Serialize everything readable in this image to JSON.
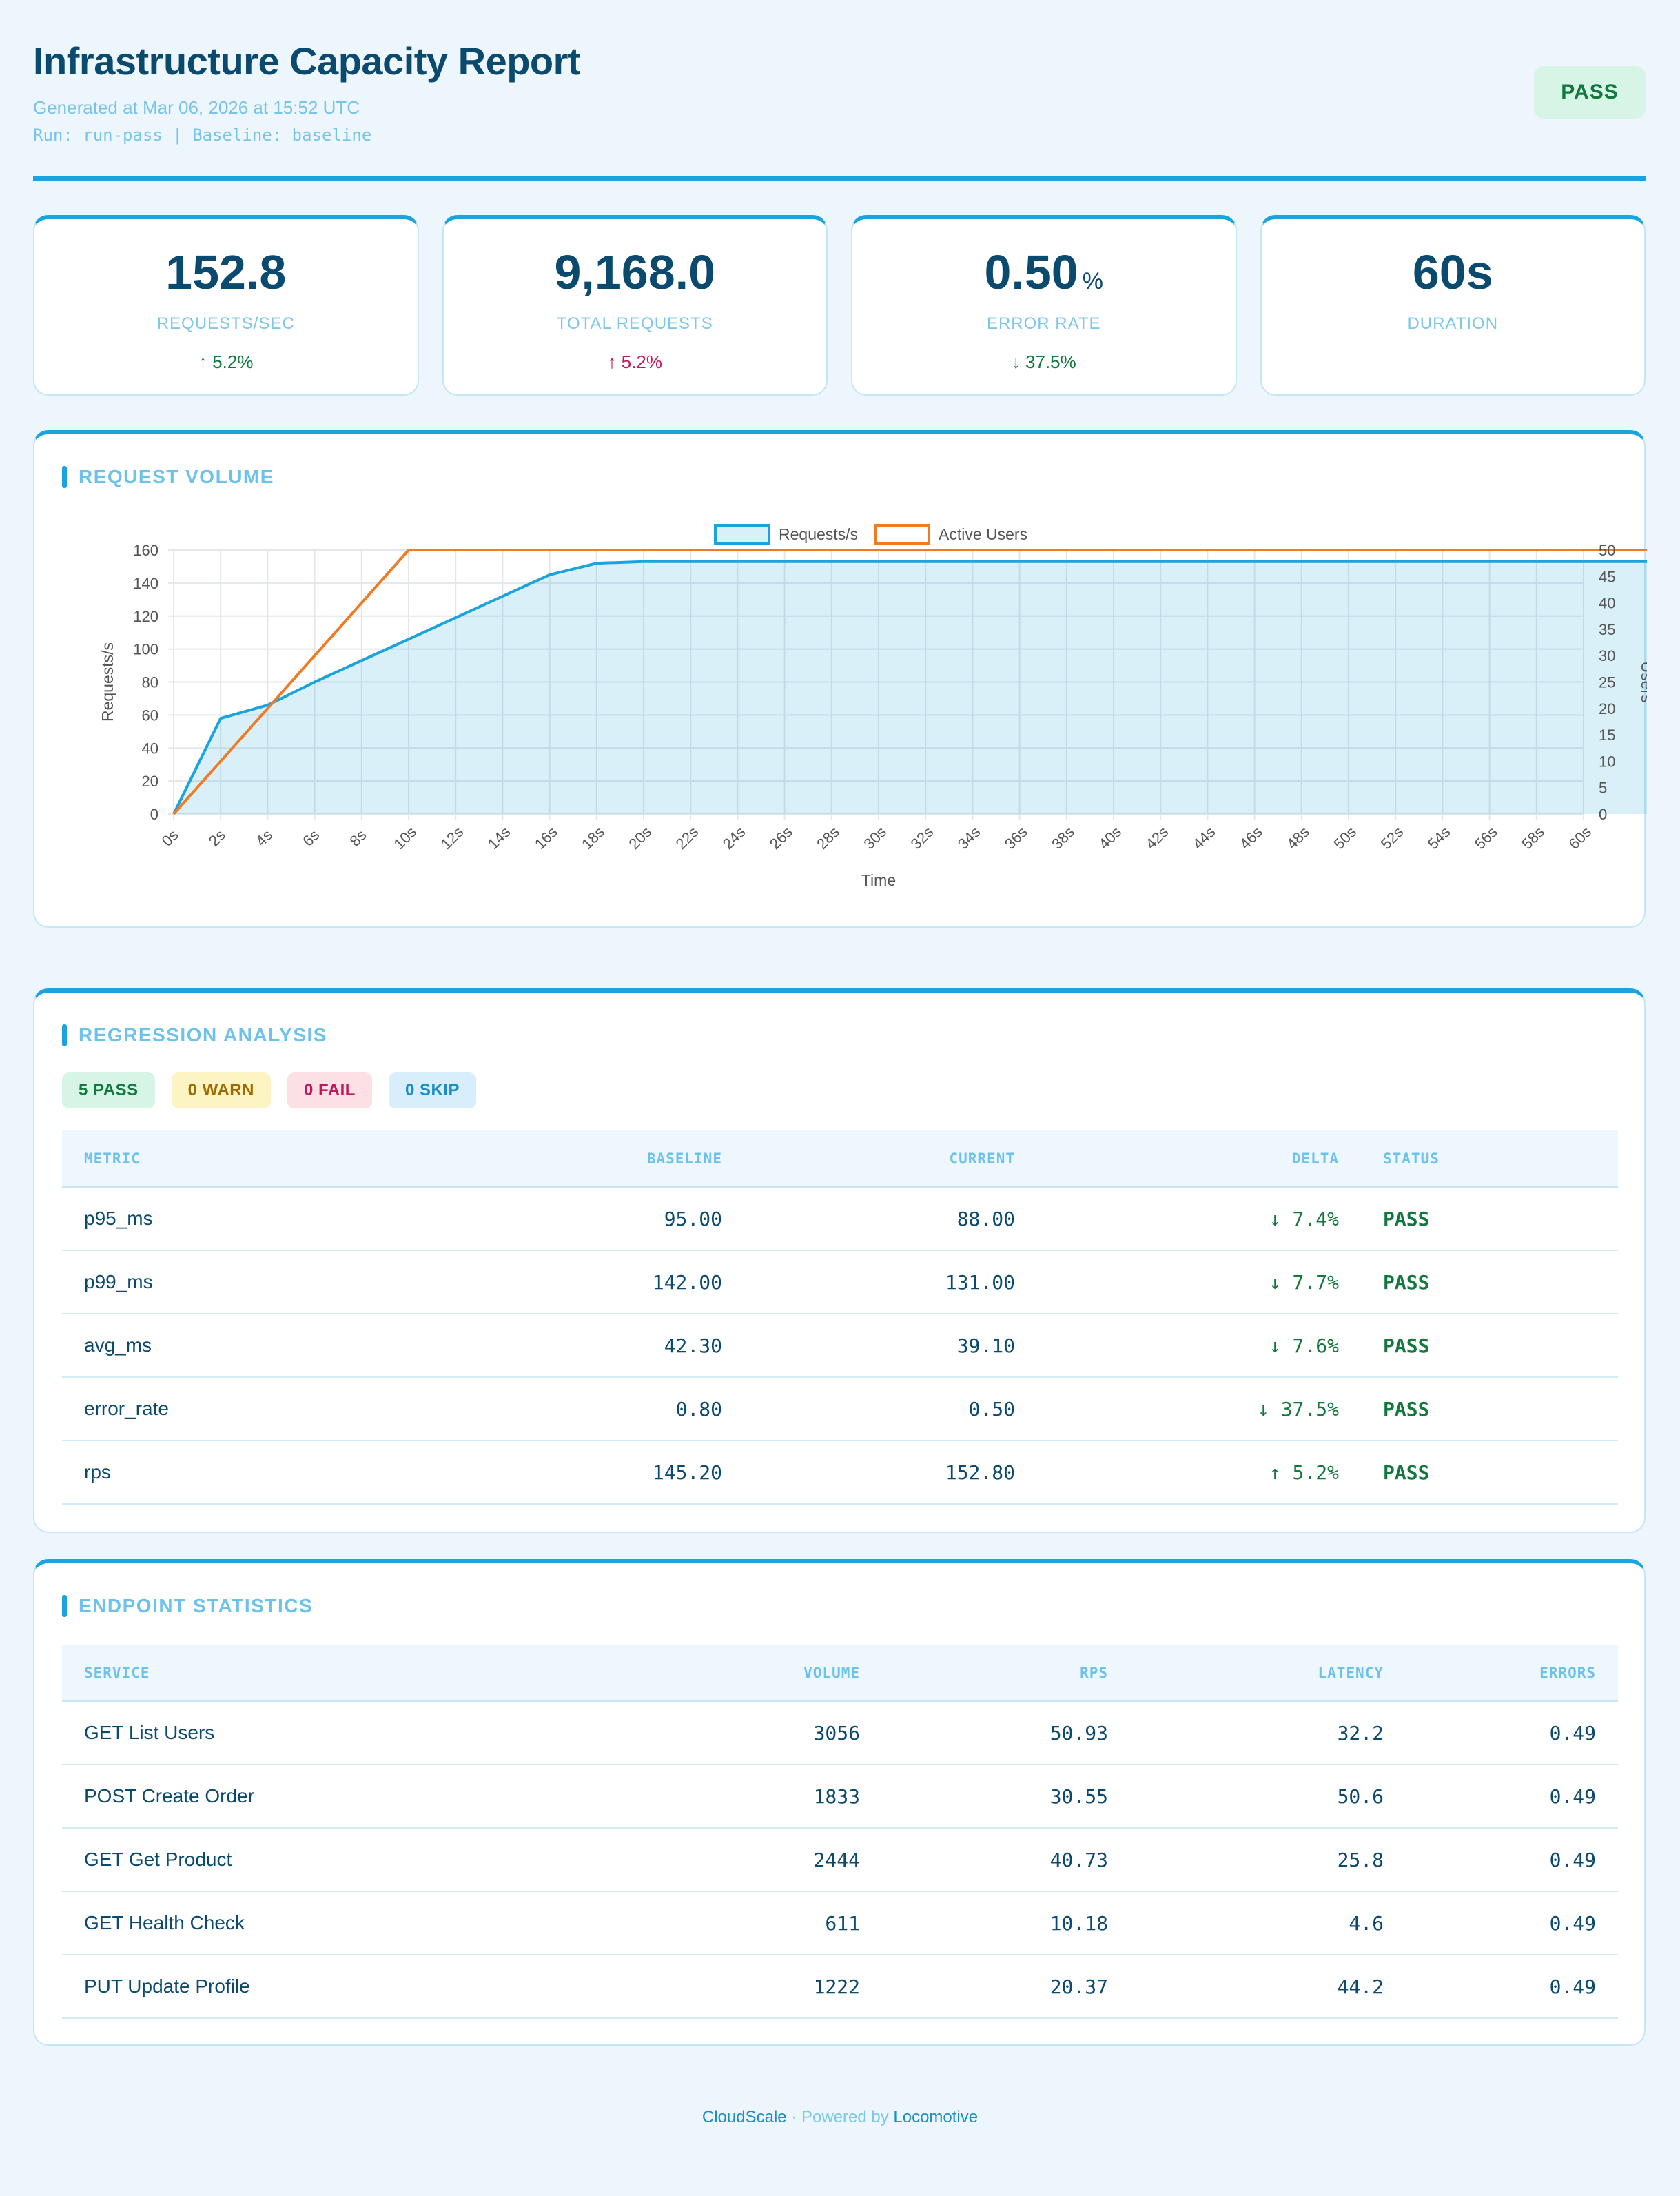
{
  "header": {
    "title": "Infrastructure Capacity Report",
    "generated": "Generated at Mar 06, 2026 at 15:52 UTC",
    "run_line": "Run: run-pass | Baseline: baseline",
    "status": "PASS"
  },
  "kpis": [
    {
      "value": "152.8",
      "unit": "",
      "label": "REQUESTS/SEC",
      "delta": "↑ 5.2%",
      "tone": "good"
    },
    {
      "value": "9,168.0",
      "unit": "",
      "label": "TOTAL REQUESTS",
      "delta": "↑ 5.2%",
      "tone": "bad"
    },
    {
      "value": "0.50",
      "unit": "%",
      "label": "ERROR RATE",
      "delta": "↓ 37.5%",
      "tone": "good"
    },
    {
      "value": "60s",
      "unit": "",
      "label": "DURATION",
      "delta": "",
      "tone": "good"
    }
  ],
  "volume": {
    "title": "REQUEST VOLUME"
  },
  "chart_data": {
    "type": "line",
    "title": "",
    "xlabel": "Time",
    "ylabel": "Requests/s",
    "y2label": "Users",
    "ylim": [
      0,
      160
    ],
    "y2lim": [
      0,
      50
    ],
    "yticks": [
      0,
      20,
      40,
      60,
      80,
      100,
      120,
      140,
      160
    ],
    "y2ticks": [
      0,
      5,
      10,
      15,
      20,
      25,
      30,
      35,
      40,
      45,
      50
    ],
    "x": [
      "0s",
      "2s",
      "4s",
      "6s",
      "8s",
      "10s",
      "12s",
      "14s",
      "16s",
      "18s",
      "20s",
      "22s",
      "24s",
      "26s",
      "28s",
      "30s",
      "32s",
      "34s",
      "36s",
      "38s",
      "40s",
      "42s",
      "44s",
      "46s",
      "48s",
      "50s",
      "52s",
      "54s",
      "56s",
      "58s",
      "60s"
    ],
    "grid": true,
    "legend": "top-center",
    "series": [
      {
        "name": "Requests/s",
        "axis": "left",
        "fill": true,
        "color": "#1aa3dc",
        "points": [
          [
            0,
            0
          ],
          [
            1,
            58
          ],
          [
            2,
            66
          ],
          [
            3,
            80
          ],
          [
            4,
            93
          ],
          [
            5,
            106
          ],
          [
            6,
            119
          ],
          [
            7,
            132
          ],
          [
            8,
            145
          ],
          [
            9,
            152
          ],
          [
            10,
            153
          ],
          [
            60,
            153
          ]
        ]
      },
      {
        "name": "Active Users",
        "axis": "right",
        "fill": false,
        "color": "#f07b24",
        "points": [
          [
            0,
            0
          ],
          [
            1,
            10
          ],
          [
            2,
            20
          ],
          [
            3,
            30
          ],
          [
            4,
            40
          ],
          [
            5,
            50
          ],
          [
            60,
            50
          ]
        ]
      }
    ]
  },
  "regression": {
    "title": "REGRESSION ANALYSIS",
    "counts": {
      "pass": "5 PASS",
      "warn": "0 WARN",
      "fail": "0 FAIL",
      "skip": "0 SKIP"
    },
    "headers": [
      "METRIC",
      "BASELINE",
      "CURRENT",
      "DELTA",
      "STATUS"
    ],
    "rows": [
      {
        "metric": "p95_ms",
        "baseline": "95.00",
        "current": "88.00",
        "delta": "↓ 7.4%",
        "status": "PASS"
      },
      {
        "metric": "p99_ms",
        "baseline": "142.00",
        "current": "131.00",
        "delta": "↓ 7.7%",
        "status": "PASS"
      },
      {
        "metric": "avg_ms",
        "baseline": "42.30",
        "current": "39.10",
        "delta": "↓ 7.6%",
        "status": "PASS"
      },
      {
        "metric": "error_rate",
        "baseline": "0.80",
        "current": "0.50",
        "delta": "↓ 37.5%",
        "status": "PASS"
      },
      {
        "metric": "rps",
        "baseline": "145.20",
        "current": "152.80",
        "delta": "↑ 5.2%",
        "status": "PASS"
      }
    ]
  },
  "endpoints": {
    "title": "ENDPOINT STATISTICS",
    "headers": [
      "SERVICE",
      "VOLUME",
      "RPS",
      "LATENCY",
      "ERRORS"
    ],
    "rows": [
      {
        "service": "GET List Users",
        "volume": "3056",
        "rps": "50.93",
        "latency": "32.2",
        "errors": "0.49"
      },
      {
        "service": "POST Create Order",
        "volume": "1833",
        "rps": "30.55",
        "latency": "50.6",
        "errors": "0.49"
      },
      {
        "service": "GET Get Product",
        "volume": "2444",
        "rps": "40.73",
        "latency": "25.8",
        "errors": "0.49"
      },
      {
        "service": "GET Health Check",
        "volume": "611",
        "rps": "10.18",
        "latency": "4.6",
        "errors": "0.49"
      },
      {
        "service": "PUT Update Profile",
        "volume": "1222",
        "rps": "20.37",
        "latency": "44.2",
        "errors": "0.49"
      }
    ]
  },
  "footer": {
    "brand": "CloudScale",
    "sep": " · Powered by ",
    "tool": "Locomotive"
  }
}
